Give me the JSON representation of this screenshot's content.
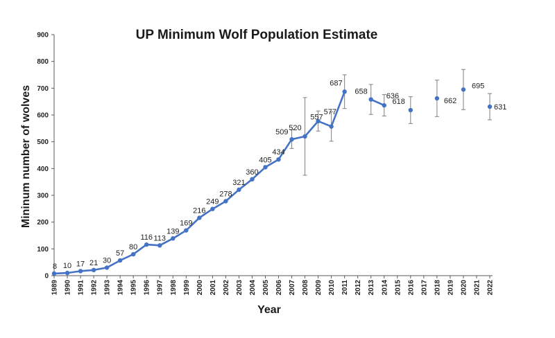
{
  "chart_data": {
    "type": "line",
    "title": "UP Minimum Wolf Population Estimate",
    "xlabel": "Year",
    "ylabel": "Mininum number of wolves",
    "ylim": [
      0,
      900
    ],
    "yticks": [
      0,
      100,
      200,
      300,
      400,
      500,
      600,
      700,
      800,
      900
    ],
    "categories": [
      "1989",
      "1990",
      "1991",
      "1992",
      "1993",
      "1994",
      "1995",
      "1996",
      "1997",
      "1998",
      "1999",
      "2000",
      "2001",
      "2002",
      "2003",
      "2004",
      "2005",
      "2006",
      "2007",
      "2008",
      "2009",
      "2010",
      "2011",
      "2012",
      "2013",
      "2014",
      "2015",
      "2016",
      "2017",
      "2018",
      "2019",
      "2020",
      "2021",
      "2022"
    ],
    "grid": false,
    "legend": "none",
    "series_color": "#4472C4",
    "errorbar_color": "#7f7f7f",
    "series": [
      {
        "points": [
          {
            "x": "1989",
            "y": 8,
            "label": "8"
          },
          {
            "x": "1990",
            "y": 10,
            "label": "10"
          },
          {
            "x": "1991",
            "y": 17,
            "label": "17"
          },
          {
            "x": "1992",
            "y": 21,
            "label": "21"
          },
          {
            "x": "1993",
            "y": 30,
            "label": "30"
          },
          {
            "x": "1994",
            "y": 57,
            "label": "57"
          },
          {
            "x": "1995",
            "y": 80,
            "label": "80"
          },
          {
            "x": "1996",
            "y": 116,
            "label": "116"
          },
          {
            "x": "1997",
            "y": 113,
            "label": "113"
          },
          {
            "x": "1998",
            "y": 139,
            "label": "139"
          },
          {
            "x": "1999",
            "y": 169,
            "label": "169"
          },
          {
            "x": "2000",
            "y": 216,
            "label": "216"
          },
          {
            "x": "2001",
            "y": 249,
            "label": "249"
          },
          {
            "x": "2002",
            "y": 278,
            "label": "278"
          },
          {
            "x": "2003",
            "y": 321,
            "label": "321"
          },
          {
            "x": "2004",
            "y": 360,
            "label": "360"
          },
          {
            "x": "2005",
            "y": 405,
            "label": "405"
          },
          {
            "x": "2006",
            "y": 434,
            "label": "434"
          },
          {
            "x": "2007",
            "y": 509,
            "label": "509",
            "err": [
              475,
              545
            ]
          },
          {
            "x": "2008",
            "y": 520,
            "label": "520",
            "err": [
              375,
              665
            ]
          },
          {
            "x": "2009",
            "y": 577,
            "label": "577",
            "err": [
              540,
              615
            ]
          },
          {
            "x": "2010",
            "y": 557,
            "label": "557",
            "err": [
              502,
              612
            ]
          },
          {
            "x": "2011",
            "y": 687,
            "label": "687",
            "err": [
              624,
              750
            ]
          },
          {
            "x": "2013",
            "y": 658,
            "label": "658",
            "err": [
              602,
              714
            ],
            "break_before": true
          },
          {
            "x": "2014",
            "y": 636,
            "label": "636",
            "err": [
              596,
              676
            ]
          },
          {
            "x": "2016",
            "y": 618,
            "label": "618",
            "err": [
              568,
              668
            ],
            "break_before": true
          },
          {
            "x": "2018",
            "y": 662,
            "label": "662",
            "err": [
              594,
              730
            ],
            "break_before": true
          },
          {
            "x": "2020",
            "y": 695,
            "label": "695",
            "err": [
              620,
              770
            ],
            "break_before": true
          },
          {
            "x": "2022",
            "y": 631,
            "label": "631",
            "err": [
              582,
              680
            ],
            "break_before": true
          }
        ]
      }
    ]
  }
}
